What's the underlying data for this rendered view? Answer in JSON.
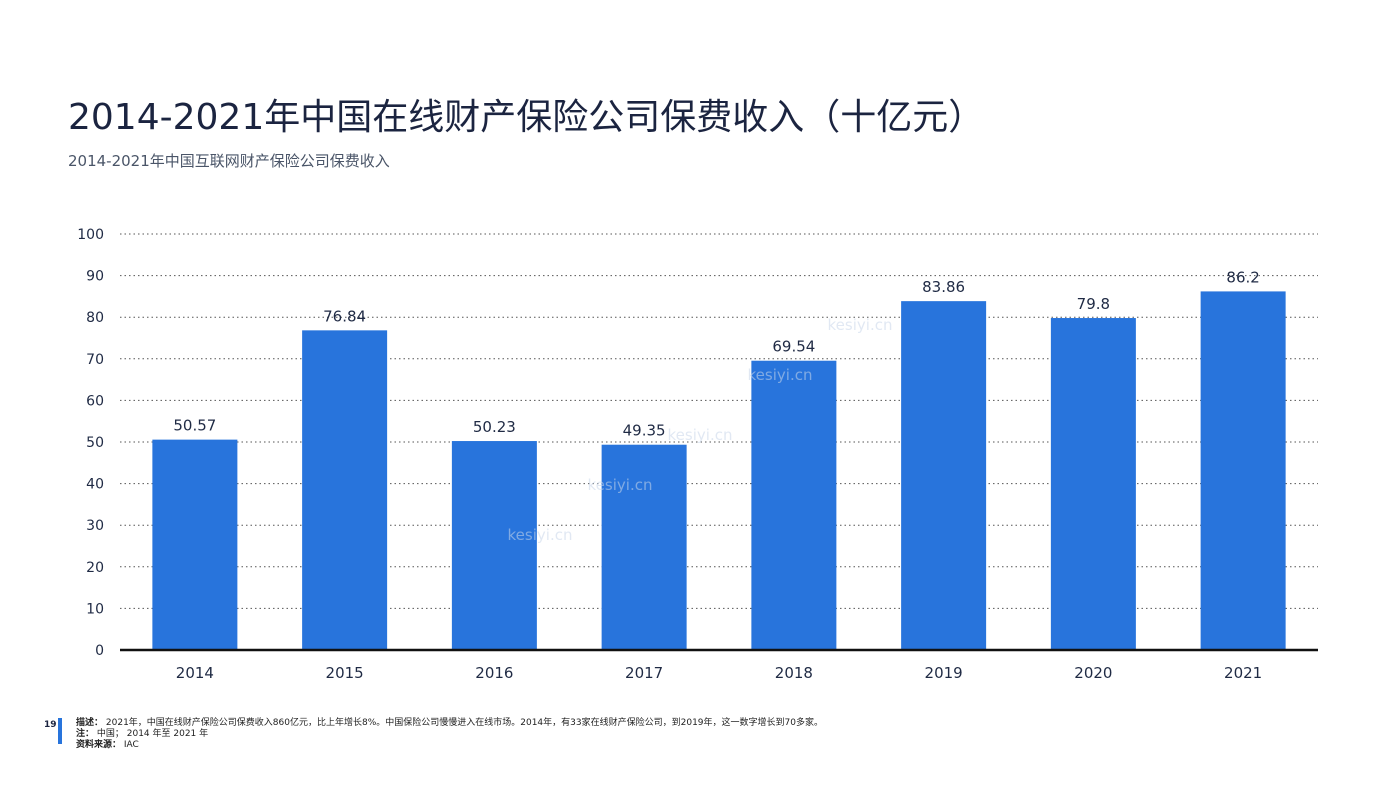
{
  "header": {
    "title": "2014-2021年中国在线财产保险公司保费收入（十亿元）",
    "subtitle": "2014-2021年中国互联网财产保险公司保费收入"
  },
  "chart_data": {
    "type": "bar",
    "categories": [
      "2014",
      "2015",
      "2016",
      "2017",
      "2018",
      "2019",
      "2020",
      "2021"
    ],
    "values": [
      50.57,
      76.84,
      50.23,
      49.35,
      69.54,
      83.86,
      79.8,
      86.2
    ],
    "value_labels": [
      "50.57",
      "76.84",
      "50.23",
      "49.35",
      "69.54",
      "83.86",
      "79.8",
      "86.2"
    ],
    "ylim": [
      0,
      100
    ],
    "yticks": [
      0,
      10,
      20,
      30,
      40,
      50,
      60,
      70,
      80,
      90,
      100
    ],
    "bar_color": "#2874dc",
    "grid": "dotted horizontal"
  },
  "footer": {
    "page_number": "19",
    "description_label": "描述：",
    "description": "2021年，中国在线财产保险公司保费收入860亿元，比上年增长8%。中国保险公司慢慢进入在线市场。2014年，有33家在线财产保险公司，到2019年，这一数字增长到70多家。",
    "note_label": "注：",
    "note": "中国； 2014 年至 2021 年",
    "source_label": "资料来源：",
    "source": "IAC"
  },
  "watermark": "kesiyi.cn"
}
